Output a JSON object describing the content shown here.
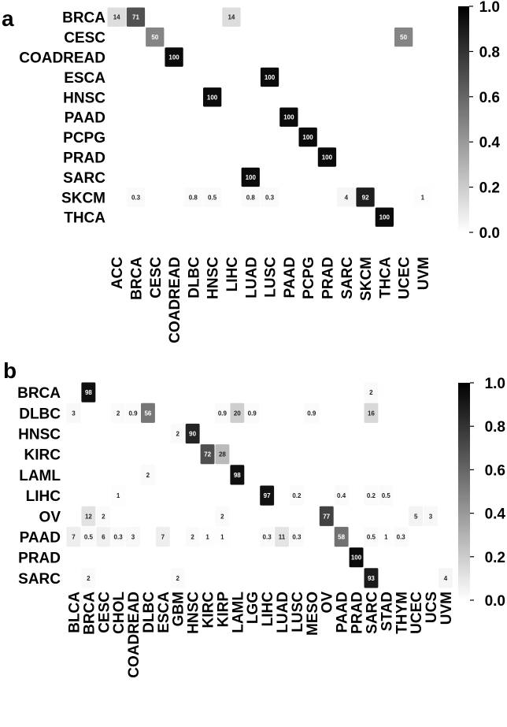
{
  "chart_data": [
    {
      "type": "heatmap",
      "panel": "a",
      "rows": [
        "BRCA",
        "CESC",
        "COADREAD",
        "ESCA",
        "HNSC",
        "PAAD",
        "PCPG",
        "PRAD",
        "SARC",
        "SKCM",
        "THCA"
      ],
      "cols": [
        "ACC",
        "BRCA",
        "CESC",
        "COADREAD",
        "DLBC",
        "HNSC",
        "LIHC",
        "LUAD",
        "LUSC",
        "PAAD",
        "PCPG",
        "PRAD",
        "SARC",
        "SKCM",
        "THCA",
        "UCEC",
        "UVM"
      ],
      "cells": [
        {
          "r": 0,
          "c": 0,
          "v": 14
        },
        {
          "r": 0,
          "c": 1,
          "v": 71
        },
        {
          "r": 0,
          "c": 6,
          "v": 14
        },
        {
          "r": 1,
          "c": 2,
          "v": 50
        },
        {
          "r": 1,
          "c": 15,
          "v": 50
        },
        {
          "r": 2,
          "c": 3,
          "v": 100
        },
        {
          "r": 3,
          "c": 8,
          "v": 100
        },
        {
          "r": 4,
          "c": 5,
          "v": 100
        },
        {
          "r": 5,
          "c": 9,
          "v": 100
        },
        {
          "r": 6,
          "c": 10,
          "v": 100
        },
        {
          "r": 7,
          "c": 11,
          "v": 100
        },
        {
          "r": 8,
          "c": 7,
          "v": 100
        },
        {
          "r": 9,
          "c": 1,
          "v": 0.3
        },
        {
          "r": 9,
          "c": 4,
          "v": 0.8
        },
        {
          "r": 9,
          "c": 5,
          "v": 0.5
        },
        {
          "r": 9,
          "c": 7,
          "v": 0.8
        },
        {
          "r": 9,
          "c": 8,
          "v": 0.3
        },
        {
          "r": 9,
          "c": 12,
          "v": 4
        },
        {
          "r": 9,
          "c": 13,
          "v": 92
        },
        {
          "r": 9,
          "c": 16,
          "v": 1
        },
        {
          "r": 10,
          "c": 14,
          "v": 100
        }
      ],
      "colorbar": {
        "ticks": [
          "0.0",
          "0.2",
          "0.4",
          "0.6",
          "0.8",
          "1.0"
        ],
        "range": [
          0,
          1
        ]
      }
    },
    {
      "type": "heatmap",
      "panel": "b",
      "rows": [
        "BRCA",
        "DLBC",
        "HNSC",
        "KIRC",
        "LAML",
        "LIHC",
        "OV",
        "PAAD",
        "PRAD",
        "SARC"
      ],
      "cols": [
        "BLCA",
        "BRCA",
        "CESC",
        "CHOL",
        "COADREAD",
        "DLBC",
        "ESCA",
        "GBM",
        "HNSC",
        "KIRC",
        "KIRP",
        "LAML",
        "LGG",
        "LIHC",
        "LUAD",
        "LUSC",
        "MESO",
        "OV",
        "PAAD",
        "PRAD",
        "SARC",
        "STAD",
        "THYM",
        "UCEC",
        "UCS",
        "UVM"
      ],
      "cells": [
        {
          "r": 0,
          "c": 1,
          "v": 98
        },
        {
          "r": 0,
          "c": 20,
          "v": 2
        },
        {
          "r": 1,
          "c": 0,
          "v": 3
        },
        {
          "r": 1,
          "c": 3,
          "v": 2
        },
        {
          "r": 1,
          "c": 4,
          "v": 0.9
        },
        {
          "r": 1,
          "c": 5,
          "v": 56
        },
        {
          "r": 1,
          "c": 10,
          "v": 0.9
        },
        {
          "r": 1,
          "c": 11,
          "v": 20
        },
        {
          "r": 1,
          "c": 12,
          "v": 0.9
        },
        {
          "r": 1,
          "c": 16,
          "v": 0.9
        },
        {
          "r": 1,
          "c": 20,
          "v": 16
        },
        {
          "r": 2,
          "c": 7,
          "v": 2
        },
        {
          "r": 2,
          "c": 8,
          "v": 90
        },
        {
          "r": 3,
          "c": 9,
          "v": 72
        },
        {
          "r": 3,
          "c": 10,
          "v": 28
        },
        {
          "r": 4,
          "c": 5,
          "v": 2
        },
        {
          "r": 4,
          "c": 11,
          "v": 98
        },
        {
          "r": 5,
          "c": 3,
          "v": 1
        },
        {
          "r": 5,
          "c": 13,
          "v": 97
        },
        {
          "r": 5,
          "c": 15,
          "v": 0.2
        },
        {
          "r": 5,
          "c": 18,
          "v": 0.4
        },
        {
          "r": 5,
          "c": 20,
          "v": 0.2
        },
        {
          "r": 5,
          "c": 21,
          "v": 0.5
        },
        {
          "r": 6,
          "c": 1,
          "v": 12
        },
        {
          "r": 6,
          "c": 2,
          "v": 2
        },
        {
          "r": 6,
          "c": 10,
          "v": 2
        },
        {
          "r": 6,
          "c": 17,
          "v": 77
        },
        {
          "r": 6,
          "c": 23,
          "v": 5
        },
        {
          "r": 6,
          "c": 24,
          "v": 3
        },
        {
          "r": 7,
          "c": 0,
          "v": 7
        },
        {
          "r": 7,
          "c": 1,
          "v": 0.5
        },
        {
          "r": 7,
          "c": 2,
          "v": 6
        },
        {
          "r": 7,
          "c": 3,
          "v": 0.3
        },
        {
          "r": 7,
          "c": 4,
          "v": 3
        },
        {
          "r": 7,
          "c": 6,
          "v": 7
        },
        {
          "r": 7,
          "c": 8,
          "v": 2
        },
        {
          "r": 7,
          "c": 9,
          "v": 1
        },
        {
          "r": 7,
          "c": 10,
          "v": 1
        },
        {
          "r": 7,
          "c": 13,
          "v": 0.3
        },
        {
          "r": 7,
          "c": 14,
          "v": 11
        },
        {
          "r": 7,
          "c": 15,
          "v": 0.3
        },
        {
          "r": 7,
          "c": 18,
          "v": 58
        },
        {
          "r": 7,
          "c": 20,
          "v": 0.5
        },
        {
          "r": 7,
          "c": 21,
          "v": 1
        },
        {
          "r": 7,
          "c": 22,
          "v": 0.3
        },
        {
          "r": 8,
          "c": 19,
          "v": 100
        },
        {
          "r": 9,
          "c": 1,
          "v": 2
        },
        {
          "r": 9,
          "c": 7,
          "v": 2
        },
        {
          "r": 9,
          "c": 20,
          "v": 93
        },
        {
          "r": 9,
          "c": 25,
          "v": 4
        }
      ],
      "colorbar": {
        "ticks": [
          "0.0",
          "0.2",
          "0.4",
          "0.6",
          "0.8",
          "1.0"
        ],
        "range": [
          0,
          1
        ]
      }
    }
  ]
}
